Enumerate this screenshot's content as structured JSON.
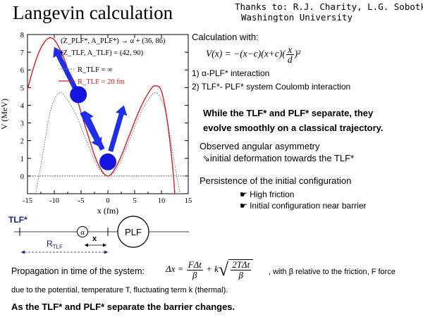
{
  "title": "Langevin calculation",
  "thanks": [
    "Thanks to: R.J. Charity, L.G. Sobotka",
    "Washington University"
  ],
  "calc": {
    "heading": "Calculation with:",
    "formula_lhs": "V(x) = −(x−c)(x+c)(",
    "formula_num": "x",
    "formula_den": "d",
    "formula_end": ")²",
    "item1": "1)   α-PLF* interaction",
    "item2": "2) TLF*- PLF* system Coulomb interaction"
  },
  "statement": [
    "While the TLF* and PLF* separate, they",
    "evolve smoothly on a classical trajectory."
  ],
  "observed": [
    "Observed angular asymmetry",
    "initial deformation towards the TLF*"
  ],
  "persistence": {
    "heading": "Persistence of the initial configuration",
    "bullets": [
      "High friction",
      "Initial configuration near barrier"
    ]
  },
  "diagram": {
    "tlf_label": "TLF*",
    "alpha_label": "α",
    "x_label": "x",
    "plf_label": "PLF",
    "rtlf_label": "R",
    "rtlf_sub": "TLF"
  },
  "propagation": {
    "line1": "Propagation in time of the system:",
    "eq_lhs": "Δx =",
    "eq_f_num": "FΔt",
    "eq_f_den": "β",
    "eq_plus": "+ k",
    "eq_s_num": "2TΔt",
    "eq_s_den": "β",
    "note": ", with β relative to the friction, F force",
    "line2": "due to the potential, temperature T, fluctuating term k (thermal).",
    "final": "As the TLF* and PLF* separate the barrier changes."
  },
  "chart_data": {
    "type": "line",
    "xlabel": "x (fm)",
    "ylabel": "V (MeV)",
    "xlim": [
      -15,
      15
    ],
    "ylim": [
      -1,
      8
    ],
    "xticks": [
      -15,
      -10,
      -5,
      0,
      5,
      10,
      15
    ],
    "yticks": [
      0,
      1,
      2,
      3,
      4,
      5,
      6,
      7,
      8
    ],
    "legend": {
      "entry1": "(Z_PLF*, A_PLF*) → α + (36, 86)",
      "entry2": "(Z_TLF, A_TLF) = (42, 90)",
      "entry3": "R_TLF = ∞",
      "entry4": "R_TLF = 20 fm"
    },
    "series": [
      {
        "name": "R_TLF = ∞",
        "style": "dotted",
        "color": "#808080",
        "x": [
          -13.5,
          -12.5,
          -11,
          -10,
          -9,
          -8,
          -6,
          -4,
          -2,
          0,
          2,
          4,
          6,
          8,
          9,
          10,
          11,
          12.5,
          13.5
        ],
        "y": [
          -1.0,
          0.6,
          3.3,
          4.3,
          4.7,
          4.5,
          3.5,
          2.0,
          0.6,
          0.0,
          0.6,
          2.0,
          3.5,
          4.5,
          4.7,
          4.3,
          3.3,
          0.6,
          -1.0
        ]
      },
      {
        "name": "R_TLF = 20 fm",
        "style": "solid",
        "color": "#cc2222",
        "x": [
          -15,
          -14,
          -13,
          -12,
          -11,
          -10,
          -9,
          -8,
          -6,
          -4,
          -2,
          0,
          2,
          4,
          6,
          8,
          9,
          10,
          11,
          12,
          12.5
        ],
        "y": [
          4.9,
          6.0,
          6.9,
          7.5,
          7.8,
          7.7,
          7.2,
          6.5,
          4.6,
          2.6,
          0.8,
          0.0,
          0.8,
          2.3,
          3.8,
          4.9,
          5.1,
          4.8,
          3.3,
          0.8,
          -1.0
        ]
      }
    ],
    "markers": [
      {
        "name": "alpha-position-upper",
        "x": -5.5,
        "y": 4.6
      },
      {
        "name": "alpha-position-lower",
        "x": 0.0,
        "y": 0.8
      }
    ],
    "arrows": [
      {
        "name": "arrow-to-upper-left",
        "from": [
          -5.5,
          4.6
        ],
        "to": [
          -10.0,
          7.3
        ]
      },
      {
        "name": "arrow-upper-to-lower",
        "from": [
          -4.8,
          3.6
        ],
        "to": [
          -1.3,
          1.6
        ]
      },
      {
        "name": "arrow-lower-to-upper",
        "from": [
          -1.0,
          1.5
        ],
        "to": [
          -4.4,
          3.7
        ]
      },
      {
        "name": "arrow-lower-right",
        "from": [
          0.5,
          1.4
        ],
        "to": [
          3.0,
          4.0
        ]
      }
    ]
  }
}
